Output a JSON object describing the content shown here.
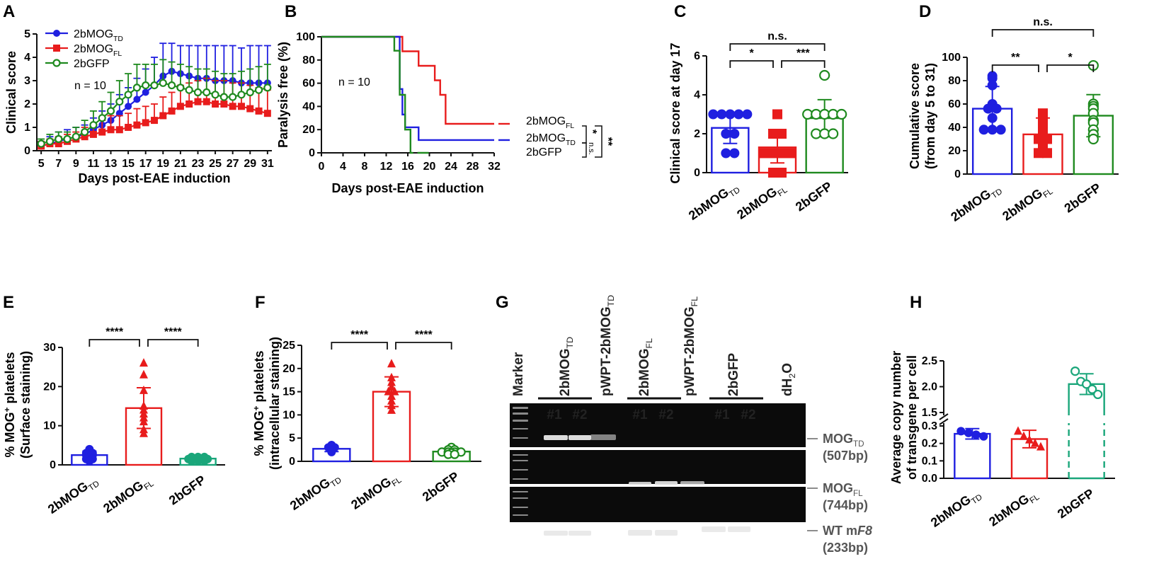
{
  "colors": {
    "TD": "#1f1fe0",
    "FL": "#e81c1c",
    "GFP": "#1f8a1f",
    "GFP2": "#1aa67a"
  },
  "chart_data": [
    {
      "panel": "A",
      "type": "line",
      "xlabel": "Days post-EAE induction",
      "ylabel": "Clinical score",
      "xlim": [
        4.5,
        31.5
      ],
      "ylim": [
        0,
        5
      ],
      "x_ticks": [
        5,
        7,
        9,
        11,
        13,
        15,
        17,
        19,
        21,
        23,
        25,
        27,
        29,
        31
      ],
      "y_ticks": [
        0,
        1,
        2,
        3,
        4,
        5
      ],
      "annotation": "n = 10",
      "x": [
        5,
        6,
        7,
        8,
        9,
        10,
        11,
        12,
        13,
        14,
        15,
        16,
        17,
        18,
        19,
        20,
        21,
        22,
        23,
        24,
        25,
        26,
        27,
        28,
        29,
        30,
        31
      ],
      "series": [
        {
          "key": "TD",
          "legend_main": "2bMOG",
          "legend_sub": "TD",
          "marker": "circle",
          "values": [
            0.2,
            0.3,
            0.4,
            0.5,
            0.6,
            0.7,
            0.9,
            1.1,
            1.3,
            1.6,
            1.9,
            2.2,
            2.5,
            2.8,
            3.2,
            3.4,
            3.3,
            3.2,
            3.1,
            3.1,
            3.0,
            3.0,
            3.0,
            2.9,
            2.9,
            2.9,
            2.9
          ],
          "errors": [
            0.2,
            0.3,
            0.4,
            0.4,
            0.4,
            0.4,
            0.5,
            0.6,
            0.7,
            0.8,
            0.8,
            0.9,
            1.0,
            1.2,
            1.4,
            1.2,
            1.2,
            1.3,
            1.4,
            1.4,
            1.5,
            1.5,
            1.5,
            1.5,
            1.6,
            1.6,
            1.6
          ]
        },
        {
          "key": "FL",
          "legend_main": "2bMOG",
          "legend_sub": "FL",
          "marker": "square",
          "values": [
            0.2,
            0.3,
            0.3,
            0.4,
            0.5,
            0.6,
            0.7,
            0.8,
            0.9,
            0.9,
            1.0,
            1.1,
            1.2,
            1.3,
            1.5,
            1.7,
            1.9,
            2.0,
            2.1,
            2.1,
            2.0,
            2.0,
            1.9,
            1.9,
            1.8,
            1.7,
            1.6
          ],
          "errors": [
            0.2,
            0.2,
            0.3,
            0.3,
            0.3,
            0.4,
            0.4,
            0.5,
            0.6,
            0.6,
            0.6,
            0.7,
            0.7,
            0.7,
            0.8,
            0.8,
            0.9,
            0.9,
            0.9,
            1.0,
            1.0,
            1.0,
            1.0,
            1.0,
            1.0,
            1.0,
            1.0
          ]
        },
        {
          "key": "GFP",
          "legend_main": "2bGFP",
          "legend_sub": "",
          "marker": "open-circle",
          "values": [
            0.3,
            0.4,
            0.5,
            0.5,
            0.6,
            0.8,
            1.1,
            1.4,
            1.7,
            2.1,
            2.4,
            2.7,
            2.8,
            2.8,
            2.9,
            2.8,
            2.7,
            2.6,
            2.5,
            2.5,
            2.4,
            2.3,
            2.3,
            2.4,
            2.5,
            2.6,
            2.7
          ],
          "errors": [
            0.2,
            0.3,
            0.3,
            0.3,
            0.4,
            0.5,
            0.6,
            0.7,
            0.8,
            0.9,
            0.9,
            1.0,
            0.9,
            0.9,
            1.0,
            1.0,
            1.0,
            1.0,
            1.0,
            1.0,
            1.0,
            1.0,
            1.0,
            1.0,
            1.0,
            1.0,
            1.0
          ]
        }
      ]
    },
    {
      "panel": "B",
      "type": "line",
      "xlabel": "Days post-EAE induction",
      "ylabel": "Paralysis free (%)",
      "xlim": [
        0,
        32
      ],
      "ylim": [
        0,
        100
      ],
      "x_ticks": [
        0,
        4,
        8,
        12,
        16,
        20,
        24,
        28,
        32
      ],
      "y_ticks": [
        0,
        20,
        40,
        60,
        80,
        100
      ],
      "annotation": "n = 10",
      "series": [
        {
          "key": "FL",
          "legend_main": "2bMOG",
          "legend_sub": "FL",
          "steps": [
            [
              0,
              100
            ],
            [
              15,
              100
            ],
            [
              15,
              87.5
            ],
            [
              18,
              87.5
            ],
            [
              18,
              75
            ],
            [
              21,
              75
            ],
            [
              21,
              62.5
            ],
            [
              22,
              62.5
            ],
            [
              22,
              50
            ],
            [
              23,
              50
            ],
            [
              23,
              25
            ],
            [
              32,
              25
            ]
          ]
        },
        {
          "key": "TD",
          "legend_main": "2bMOG",
          "legend_sub": "TD",
          "steps": [
            [
              0,
              100
            ],
            [
              14.5,
              100
            ],
            [
              14.5,
              55
            ],
            [
              15,
              55
            ],
            [
              15,
              33
            ],
            [
              15.5,
              33
            ],
            [
              15.5,
              22
            ],
            [
              18,
              22
            ],
            [
              18,
              11
            ],
            [
              32,
              11
            ]
          ]
        },
        {
          "key": "GFP",
          "legend_main": "2bGFP",
          "legend_sub": "",
          "steps": [
            [
              0,
              100
            ],
            [
              13.5,
              100
            ],
            [
              13.5,
              88
            ],
            [
              14.5,
              88
            ],
            [
              14.5,
              50
            ],
            [
              15.5,
              50
            ],
            [
              15.5,
              20
            ],
            [
              16.5,
              20
            ],
            [
              16.5,
              0
            ],
            [
              17,
              0
            ]
          ]
        }
      ],
      "significance": [
        "n.s.",
        "*",
        "**"
      ]
    },
    {
      "panel": "C",
      "type": "bar",
      "ylabel": "Clinical score at day 17",
      "ylim": [
        0,
        6
      ],
      "y_ticks": [
        0,
        2,
        4,
        6
      ],
      "groups": [
        {
          "key": "TD",
          "label_main": "2bMOG",
          "label_sub": "TD",
          "mean": 2.3,
          "sd": 0.8,
          "marker": "circle",
          "points": [
            3,
            3,
            3,
            3,
            3,
            2,
            2,
            1,
            1
          ]
        },
        {
          "key": "FL",
          "label_main": "2bMOG",
          "label_sub": "FL",
          "mean": 1.3,
          "sd": 0.8,
          "marker": "square",
          "points": [
            3,
            2,
            2,
            1,
            1,
            1,
            1,
            0,
            0
          ]
        },
        {
          "key": "GFP",
          "label_main": "2bGFP",
          "label_sub": "",
          "mean": 2.8,
          "sd": 0.95,
          "marker": "open-circle",
          "points": [
            5,
            3,
            3,
            3,
            3,
            3,
            2,
            2,
            2
          ]
        }
      ],
      "comparisons": [
        {
          "from": 0,
          "to": 2,
          "label": "n.s.",
          "level": 2
        },
        {
          "from": 0,
          "to": 1,
          "label": "*",
          "level": 1
        },
        {
          "from": 1,
          "to": 2,
          "label": "***",
          "level": 1
        }
      ]
    },
    {
      "panel": "D",
      "type": "bar",
      "ylabel": "Cumulative score",
      "ylabel2": "(from day 5 to 31)",
      "ylim": [
        0,
        100
      ],
      "y_ticks": [
        0,
        20,
        40,
        60,
        80,
        100
      ],
      "groups": [
        {
          "key": "TD",
          "label_main": "2bMOG",
          "label_sub": "TD",
          "mean": 56,
          "sd": 19,
          "marker": "circle",
          "points": [
            84,
            82,
            76,
            60,
            56,
            56,
            48,
            38,
            38,
            38
          ]
        },
        {
          "key": "FL",
          "label_main": "2bMOG",
          "label_sub": "FL",
          "mean": 34,
          "sd": 14,
          "marker": "square",
          "points": [
            52,
            48,
            42,
            38,
            34,
            30,
            30,
            24,
            18,
            18
          ]
        },
        {
          "key": "GFP",
          "label_main": "2bGFP",
          "label_sub": "",
          "mean": 50,
          "sd": 18,
          "marker": "open-circle",
          "points": [
            93,
            60,
            58,
            56,
            52,
            46,
            44,
            38,
            34,
            30
          ]
        }
      ],
      "comparisons": [
        {
          "from": 0,
          "to": 2,
          "label": "n.s.",
          "level": 2
        },
        {
          "from": 0,
          "to": 1,
          "label": "**",
          "level": 1
        },
        {
          "from": 1,
          "to": 2,
          "label": "*",
          "level": 1
        }
      ]
    },
    {
      "panel": "E",
      "type": "bar",
      "ylabel_main": "% MOG",
      "ylabel_sup": "+",
      "ylabel_rest": " platelets",
      "ylabel2": "(Surface staining)",
      "ylim": [
        0,
        30
      ],
      "y_ticks": [
        0,
        10,
        20,
        30
      ],
      "groups": [
        {
          "key": "TD",
          "label_main": "2bMOG",
          "label_sub": "TD",
          "mean": 2.5,
          "sd": 1.0,
          "marker": "circle",
          "points": [
            4,
            3.5,
            3,
            3,
            2.5,
            2.5,
            2,
            1.5,
            1.5,
            1
          ]
        },
        {
          "key": "FL",
          "label_main": "2bMOG",
          "label_sub": "FL",
          "mean": 14.5,
          "sd": 5.2,
          "marker": "triangle",
          "points": [
            26,
            23,
            19,
            15,
            14,
            13,
            12,
            11,
            9,
            8
          ]
        },
        {
          "key": "GFP2",
          "label_main": "2bGFP",
          "label_sub": "",
          "mean": 1.6,
          "sd": 0.5,
          "marker": "circle",
          "points": [
            2,
            2,
            2,
            1.5,
            1.5,
            1.5,
            1.5,
            1,
            1,
            1
          ]
        }
      ],
      "comparisons": [
        {
          "from": 0,
          "to": 1,
          "label": "****",
          "level": 1
        },
        {
          "from": 1,
          "to": 2,
          "label": "****",
          "level": 1
        }
      ]
    },
    {
      "panel": "F",
      "type": "bar",
      "ylabel_main": "% MOG",
      "ylabel_sup": "+",
      "ylabel_rest": " platelets",
      "ylabel2": "(intracellular staining)",
      "ylim": [
        0,
        25
      ],
      "y_ticks": [
        0,
        5,
        10,
        15,
        20,
        25
      ],
      "groups": [
        {
          "key": "TD",
          "label_main": "2bMOG",
          "label_sub": "TD",
          "mean": 2.7,
          "sd": 0.6,
          "marker": "circle",
          "points": [
            3.5,
            3.2,
            3,
            3,
            2.8,
            2.6,
            2.5,
            2.4,
            2.2,
            2
          ]
        },
        {
          "key": "FL",
          "label_main": "2bMOG",
          "label_sub": "FL",
          "mean": 15,
          "sd": 3.2,
          "marker": "triangle",
          "points": [
            21,
            18,
            17,
            16,
            15,
            15,
            14,
            13,
            12,
            11
          ]
        },
        {
          "key": "GFP",
          "label_main": "2bGFP",
          "label_sub": "",
          "mean": 2.1,
          "sd": 0.5,
          "marker": "open-circle",
          "points": [
            3,
            2.5,
            2.5,
            2,
            2,
            2,
            2,
            1.8,
            1.5,
            1.5
          ]
        }
      ],
      "comparisons": [
        {
          "from": 0,
          "to": 1,
          "label": "****",
          "level": 1
        },
        {
          "from": 1,
          "to": 2,
          "label": "****",
          "level": 1
        }
      ]
    },
    {
      "panel": "H",
      "type": "bar",
      "ylabel": "Average copy number",
      "ylabel2": "of transgene per cell",
      "y_ticks_low": [
        0.0,
        0.1,
        0.2,
        0.3
      ],
      "y_ticks_high": [
        1.5,
        2.0,
        2.5
      ],
      "groups": [
        {
          "key": "TD",
          "label_main": "2bMOG",
          "label_sub": "TD",
          "mean": 0.255,
          "sd": 0.03,
          "marker": "circle",
          "points": [
            0.27,
            0.26,
            0.25,
            0.24
          ]
        },
        {
          "key": "FL",
          "label_main": "2bMOG",
          "label_sub": "FL",
          "mean": 0.225,
          "sd": 0.05,
          "marker": "triangle",
          "points": [
            0.27,
            0.24,
            0.22,
            0.2,
            0.18
          ]
        },
        {
          "key": "GFP2",
          "label_main": "2bGFP",
          "label_sub": "",
          "mean": 2.05,
          "sd": 0.2,
          "marker": "open-circle",
          "points": [
            2.3,
            2.1,
            2.05,
            1.95,
            1.85
          ]
        }
      ]
    }
  ],
  "gel": {
    "panel": "G",
    "lane_labels": [
      {
        "main": "Marker",
        "sub": ""
      },
      {
        "main": "2bMOG",
        "sub": "TD"
      },
      {
        "main": "pWPT-2bMOG",
        "sub": "TD"
      },
      {
        "main": "2bMOG",
        "sub": "FL"
      },
      {
        "main": "pWPT-2bMOG",
        "sub": "FL"
      },
      {
        "main": "2bGFP",
        "sub": ""
      },
      {
        "main": "dH",
        "sub": "2",
        "after": "O"
      }
    ],
    "replicates": [
      "#1",
      "#2",
      "#1",
      "#2",
      "#1",
      "#2"
    ],
    "bands": [
      {
        "main": "MOG",
        "sub": "TD",
        "size": "(507bp)"
      },
      {
        "main": "MOG",
        "sub": "FL",
        "size": "(744bp)"
      },
      {
        "main": "WT m",
        "italic": "F8",
        "size": "(233bp)"
      }
    ]
  },
  "panel_letters": [
    "A",
    "B",
    "C",
    "D",
    "E",
    "F",
    "G",
    "H"
  ]
}
